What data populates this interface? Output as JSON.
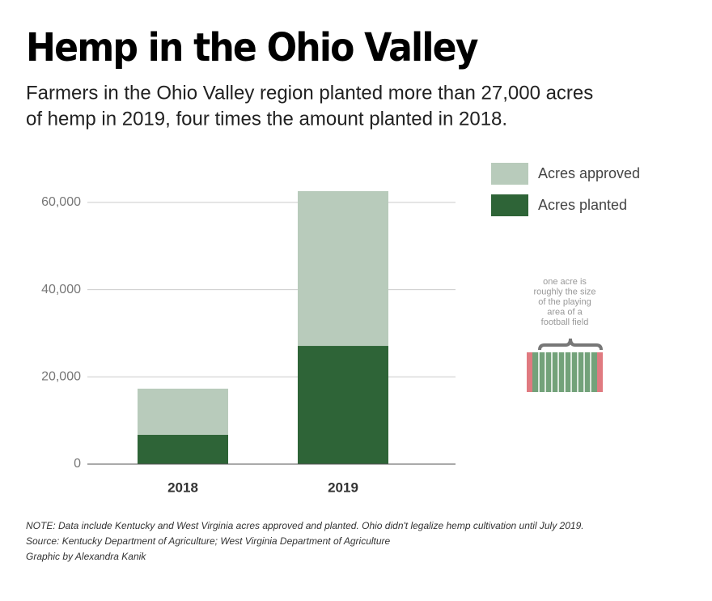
{
  "title": "Hemp in the Ohio Valley",
  "subtitle": [
    "Farmers in the Ohio Valley region planted more than 27,000 acres",
    "of hemp in 2019, four times the amount planted in 2018."
  ],
  "chart_data": {
    "type": "bar",
    "categories": [
      "2018",
      "2019"
    ],
    "series": [
      {
        "name": "Acres approved",
        "color": "#b8cbbb",
        "values": [
          17300,
          62600
        ]
      },
      {
        "name": "Acres planted",
        "color": "#2e6437",
        "values": [
          6700,
          27100
        ]
      }
    ],
    "ylim": [
      0,
      65000
    ],
    "yticks": [
      0,
      {
        "value": 20000,
        "label": "20,000"
      },
      {
        "value": 40000,
        "label": "40,000"
      },
      {
        "value": 60000,
        "label": "60,000"
      }
    ],
    "grid": true,
    "legend": "top-right",
    "annotation": [
      "one acre is",
      "roughly the size",
      "of the playing",
      "area of a",
      "football field"
    ]
  },
  "notes": [
    "NOTE: Data include Kentucky and West Virginia acres approved and planted. Ohio didn't legalize hemp cultivation until July 2019.",
    "Source: Kentucky Department of Agriculture; West Virginia Department of Agriculture",
    "Graphic by Alexandra Kanik"
  ]
}
